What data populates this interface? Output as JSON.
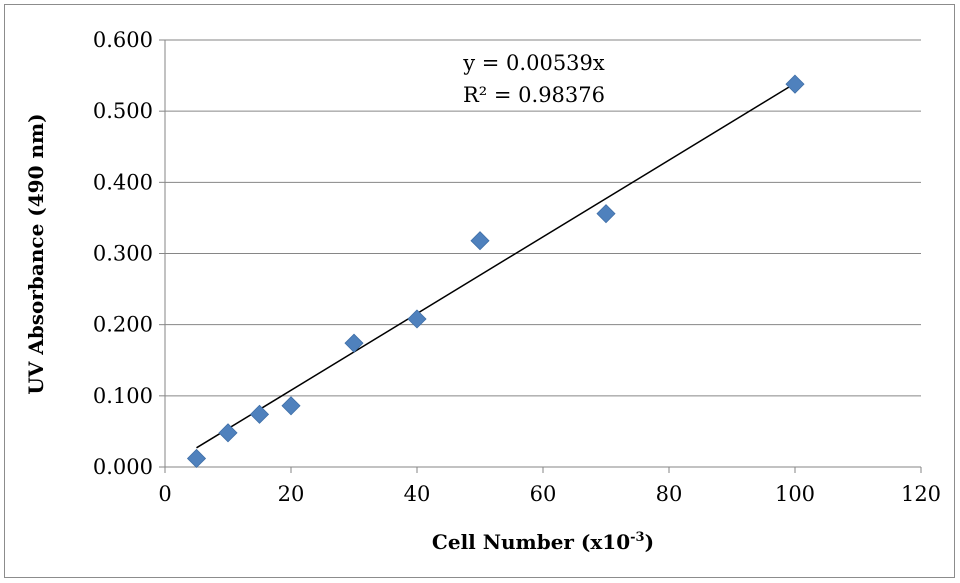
{
  "chart_data": {
    "type": "scatter",
    "title": "",
    "xlabel": "Cell Number (x10",
    "xlabel_sup": "-3",
    "xlabel_close": ")",
    "ylabel": "UV Absorbance (490 nm)",
    "xlim": [
      0,
      120
    ],
    "ylim": [
      0,
      0.6
    ],
    "x_ticks": [
      0,
      20,
      40,
      60,
      80,
      100,
      120
    ],
    "y_ticks": [
      0,
      0.1,
      0.2,
      0.3,
      0.4,
      0.5,
      0.6
    ],
    "x_tick_labels": [
      "0",
      "20",
      "40",
      "60",
      "80",
      "100",
      "120"
    ],
    "y_tick_labels": [
      "0.000",
      "0.100",
      "0.200",
      "0.300",
      "0.400",
      "0.500",
      "0.600"
    ],
    "grid": "horizontal",
    "legend": "none",
    "series": [
      {
        "marker": "diamond",
        "color": "#4f81bd",
        "points": [
          {
            "x": 5,
            "y": 0.012
          },
          {
            "x": 10,
            "y": 0.048
          },
          {
            "x": 15,
            "y": 0.074
          },
          {
            "x": 20,
            "y": 0.086
          },
          {
            "x": 30,
            "y": 0.174
          },
          {
            "x": 40,
            "y": 0.208
          },
          {
            "x": 50,
            "y": 0.318
          },
          {
            "x": 70,
            "y": 0.356
          },
          {
            "x": 100,
            "y": 0.538
          }
        ]
      }
    ],
    "trendline": {
      "type": "linear",
      "slope": 0.00539,
      "x_range": [
        5,
        100
      ],
      "color": "#000000",
      "equation": "y = 0.00539x",
      "r_squared_label": "R² = 0.98376"
    }
  }
}
